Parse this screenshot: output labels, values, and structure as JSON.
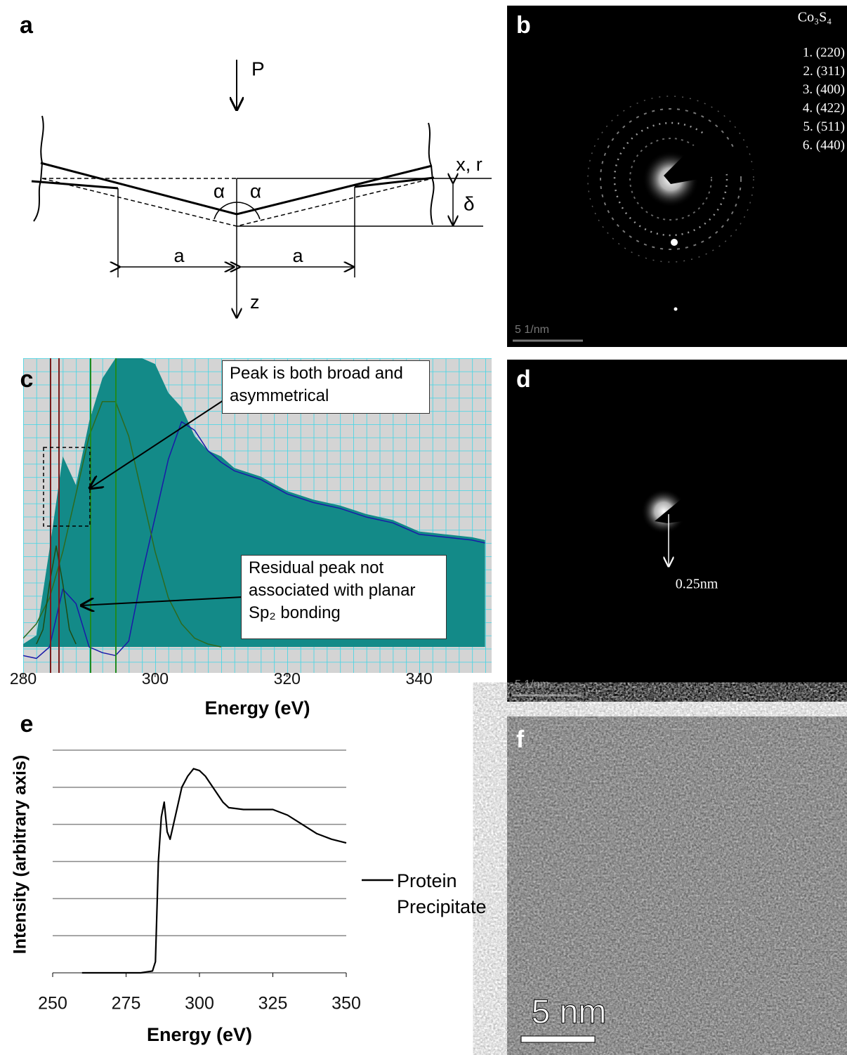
{
  "panels": {
    "a": {
      "label": "a",
      "labels": {
        "force": "P",
        "axis_x": "x, r",
        "angle_left": "α",
        "angle_right": "α",
        "depth": "δ",
        "radius_left": "a",
        "radius_right": "a",
        "axis_z": "z"
      }
    },
    "b": {
      "label": "b",
      "compound": "Co₃S₄",
      "planes": [
        "1. (220)",
        "2. (311)",
        "3. (400)",
        "4. (422)",
        "5. (511)",
        "6. (440)"
      ],
      "scale_bar": "5 1/nm"
    },
    "d": {
      "label": "d",
      "spacing": "0.25nm",
      "scale_bar": "5 1/nm"
    },
    "f": {
      "label": "f",
      "scale_bar": "5 nm"
    }
  },
  "chart_data": [
    {
      "type": "line",
      "label": "c",
      "x_label": "Energy (eV)",
      "xlim": [
        280,
        351
      ],
      "ylim": [
        -9,
        100
      ],
      "xticks": [
        280,
        300,
        320,
        340
      ],
      "x": [
        280,
        282,
        284,
        286,
        288,
        290,
        292,
        294,
        296,
        298,
        300,
        302,
        304,
        306,
        308,
        310,
        312,
        316,
        320,
        324,
        328,
        332,
        336,
        340,
        344,
        348,
        350
      ],
      "series": [
        {
          "color": "#138a88",
          "fill": true,
          "values": [
            1,
            4,
            34,
            66,
            56,
            78,
            93,
            100,
            100,
            100,
            98,
            88,
            83,
            73,
            68,
            66,
            62,
            59,
            54,
            51,
            49,
            46,
            44,
            40,
            39,
            38,
            37
          ]
        },
        {
          "color": "#1a1aa8",
          "values": [
            -3,
            -4,
            0,
            20,
            15,
            0,
            -2,
            -3,
            2,
            25,
            45,
            65,
            78,
            75,
            68,
            64,
            61,
            58,
            53,
            50,
            48,
            45,
            43,
            39,
            38,
            37,
            36
          ]
        },
        {
          "color": "#2d6a1e",
          "values": [
            3,
            8,
            17,
            33,
            53,
            73,
            85,
            85,
            73,
            53,
            33,
            17,
            8,
            3,
            1,
            0,
            null,
            null,
            null,
            null,
            null,
            null,
            null,
            null,
            null,
            null,
            null
          ]
        },
        {
          "color": "#1e4a12",
          "x": [
            282,
            283,
            284,
            285,
            286,
            287,
            288
          ],
          "values": [
            1,
            6,
            22,
            35,
            22,
            6,
            1
          ]
        }
      ],
      "annotations": [
        "Peak is both broad and asymmetrical",
        "Residual peak not associated with planar Sp₂ bonding"
      ]
    },
    {
      "type": "line",
      "label": "e",
      "x_label": "Energy (eV)",
      "y_label": "Intensity (arbitrary axis)",
      "xlim": [
        250,
        350
      ],
      "ylim": [
        0,
        6
      ],
      "xticks": [
        250,
        275,
        300,
        325,
        350
      ],
      "yticks": [
        0,
        1,
        2,
        3,
        4,
        5,
        6
      ],
      "grid": true,
      "show_ytick_labels": false,
      "x": [
        260,
        270,
        280,
        284,
        285,
        286,
        287,
        288,
        289,
        290,
        292,
        294,
        296,
        298,
        300,
        302,
        305,
        308,
        310,
        315,
        320,
        325,
        330,
        335,
        340,
        345,
        350
      ],
      "series": [
        {
          "name": "Protein Precipitate",
          "color": "#000000",
          "values": [
            0,
            0,
            0,
            0.05,
            0.3,
            3,
            4.2,
            4.6,
            3.8,
            3.6,
            4.3,
            5.0,
            5.3,
            5.5,
            5.45,
            5.3,
            4.95,
            4.6,
            4.45,
            4.4,
            4.4,
            4.4,
            4.25,
            4.0,
            3.75,
            3.6,
            3.5
          ]
        }
      ]
    }
  ]
}
